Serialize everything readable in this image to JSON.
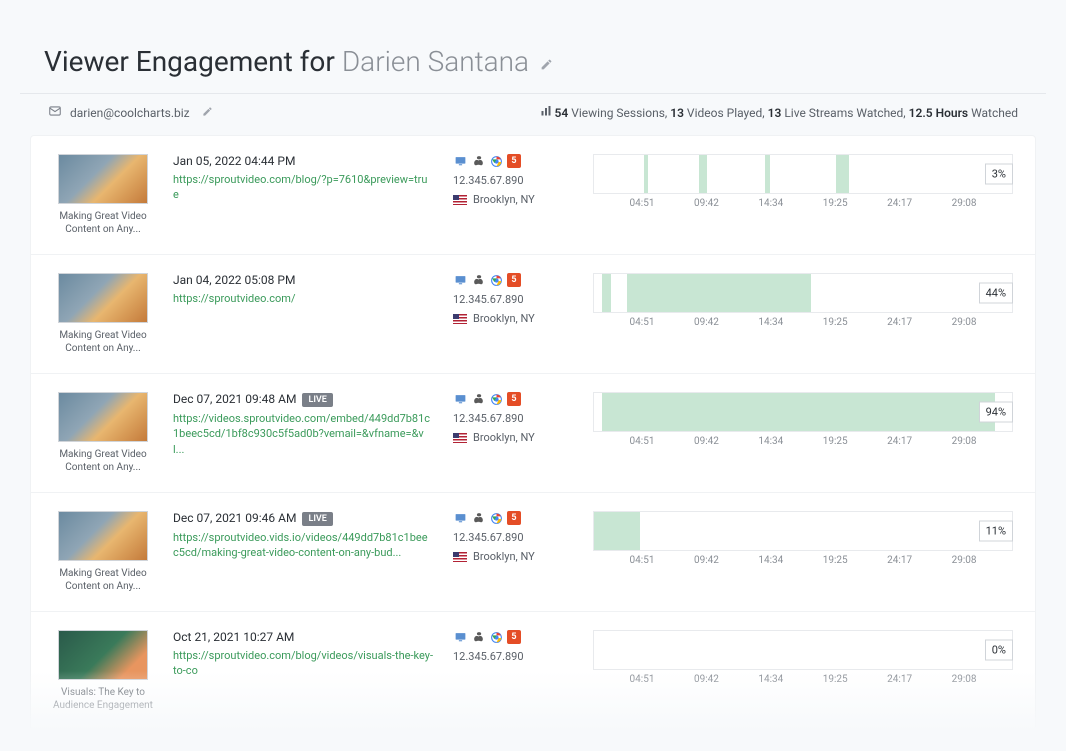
{
  "title_prefix": "Viewer Engagement for ",
  "viewer_name": "Darien Santana",
  "email": "darien@coolcharts.biz",
  "summary": {
    "sessions": "54",
    "sessions_label": " Viewing Sessions, ",
    "videos": "13",
    "videos_label": " Videos Played, ",
    "streams": "13",
    "streams_label": " Live Streams Watched, ",
    "hours": "12.5 Hours",
    "hours_label": " Watched"
  },
  "axis_labels": [
    "04:51",
    "09:42",
    "14:34",
    "19:25",
    "24:17",
    "29:08"
  ],
  "sessions_list": [
    {
      "thumb_title": "Making Great Video Content on Any...",
      "date": "Jan 05, 2022 04:44 PM",
      "live": false,
      "url": "https://sproutvideo.com/blog/?p=7610&preview=true",
      "ip": "12.345.67.890",
      "location": "Brooklyn, NY",
      "percent": "3%",
      "segments": [
        [
          12,
          13
        ],
        [
          25,
          27
        ],
        [
          41,
          42
        ],
        [
          58,
          61
        ]
      ]
    },
    {
      "thumb_title": "Making Great Video Content on Any...",
      "date": "Jan 04, 2022 05:08 PM",
      "live": false,
      "url": "https://sproutvideo.com/",
      "ip": "12.345.67.890",
      "location": "Brooklyn, NY",
      "percent": "44%",
      "segments": [
        [
          2,
          4
        ],
        [
          8,
          52
        ]
      ]
    },
    {
      "thumb_title": "Making Great Video Content on Any...",
      "date": "Dec 07, 2021 09:48 AM",
      "live": true,
      "url": "https://videos.sproutvideo.com/embed/449dd7b81c1beec5cd/1bf8c930c5f5ad0b?vemail=&vfname=&vl...",
      "ip": "12.345.67.890",
      "location": "Brooklyn, NY",
      "percent": "94%",
      "segments": [
        [
          2,
          96
        ]
      ]
    },
    {
      "thumb_title": "Making Great Video Content on Any...",
      "date": "Dec 07, 2021 09:46 AM",
      "live": true,
      "url": "https://sproutvideo.vids.io/videos/449dd7b81c1beec5cd/making-great-video-content-on-any-bud...",
      "ip": "12.345.67.890",
      "location": "Brooklyn, NY",
      "percent": "11%",
      "segments": [
        [
          0,
          11
        ]
      ]
    },
    {
      "thumb_title": "Visuals: The Key to Audience Engagement",
      "thumb_variant": "green",
      "date": "Oct 21, 2021 10:27 AM",
      "live": false,
      "url": "https://sproutvideo.com/blog/videos/visuals-the-key-to-co",
      "ip": "12.345.67.890",
      "location": "",
      "percent": "0%",
      "segments": []
    }
  ],
  "live_label": "LIVE",
  "icons": {
    "monitor_color": "#5a8fd0",
    "os_color": "#5a5a5a",
    "chrome_stroke": "#4285f4",
    "html5_bg": "#e44d26"
  }
}
